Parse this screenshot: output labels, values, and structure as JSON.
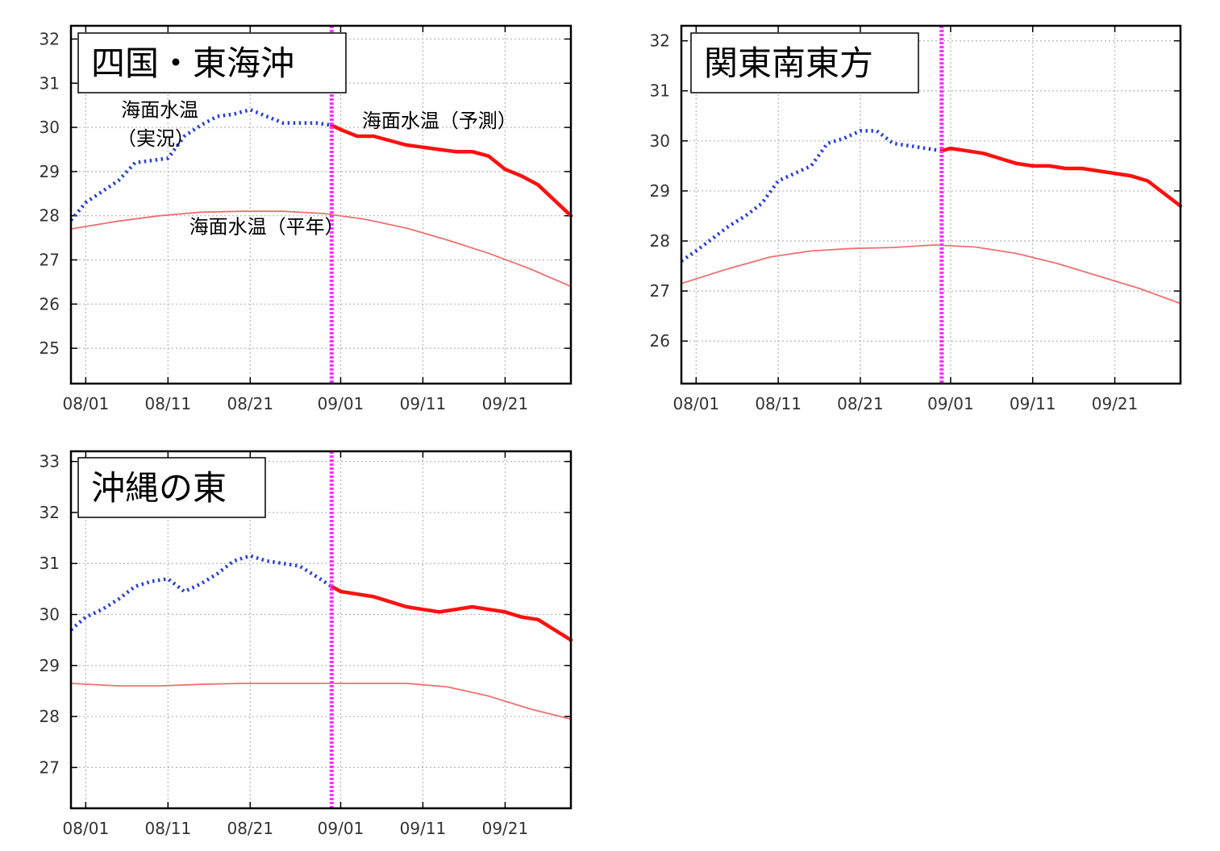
{
  "colors": {
    "observed": "#2a3fe0",
    "forecast": "#ff1010",
    "normal": "#f07070",
    "today_line": "#ff33ff",
    "grid": "#b5b5b5"
  },
  "chart_data": [
    {
      "type": "line",
      "title": "四国・東海沖",
      "x_ticks": [
        "08/01",
        "08/11",
        "08/21",
        "09/01",
        "09/11",
        "09/21"
      ],
      "x_tick_days": [
        1,
        11,
        21,
        32,
        42,
        52
      ],
      "x_range": [
        -0.8,
        60
      ],
      "today_day": 30.9,
      "ylim": [
        24.2,
        32.3
      ],
      "y_ticks": [
        25,
        26,
        27,
        28,
        29,
        30,
        31,
        32
      ],
      "annotations": [
        {
          "text": "海面水温",
          "day": 10,
          "y": 30.25
        },
        {
          "text": "（実況）",
          "day": 9.5,
          "y": 29.6
        },
        {
          "text": "海面水温（予測）",
          "day": 44,
          "y": 30.0
        },
        {
          "text": "海面水温（平年）",
          "day": 23,
          "y": 27.6
        }
      ],
      "series": [
        {
          "role": "observed",
          "x": [
            -0.8,
            1,
            3,
            5,
            7,
            9,
            11,
            13,
            15,
            17,
            19,
            21,
            23,
            25,
            27,
            29,
            30.9
          ],
          "y": [
            27.9,
            28.3,
            28.55,
            28.8,
            29.2,
            29.25,
            29.3,
            29.8,
            30.05,
            30.25,
            30.3,
            30.4,
            30.25,
            30.1,
            30.1,
            30.1,
            30.05
          ]
        },
        {
          "role": "forecast",
          "x": [
            30.9,
            32,
            34,
            36,
            38,
            40,
            42,
            44,
            46,
            48,
            50,
            52,
            54,
            56,
            58,
            60
          ],
          "y": [
            30.05,
            29.95,
            29.8,
            29.8,
            29.7,
            29.6,
            29.55,
            29.5,
            29.45,
            29.45,
            29.35,
            29.05,
            28.9,
            28.7,
            28.35,
            28.0
          ]
        },
        {
          "role": "normal",
          "x": [
            -0.8,
            5,
            10,
            15,
            20,
            25,
            30,
            35,
            40,
            45,
            50,
            55,
            60
          ],
          "y": [
            27.7,
            27.88,
            28.0,
            28.08,
            28.1,
            28.1,
            28.05,
            27.92,
            27.72,
            27.45,
            27.15,
            26.8,
            26.4
          ]
        }
      ]
    },
    {
      "type": "line",
      "title": "関東南東方",
      "x_ticks": [
        "08/01",
        "08/11",
        "08/21",
        "09/01",
        "09/11",
        "09/21"
      ],
      "x_tick_days": [
        1,
        11,
        21,
        32,
        42,
        52
      ],
      "x_range": [
        -0.8,
        60
      ],
      "today_day": 30.9,
      "ylim": [
        25.15,
        32.3
      ],
      "y_ticks": [
        26,
        27,
        28,
        29,
        30,
        31,
        32
      ],
      "annotations": [],
      "series": [
        {
          "role": "observed",
          "x": [
            -0.8,
            1,
            3,
            5,
            7,
            9,
            11,
            13,
            15,
            17,
            19,
            21,
            23,
            25,
            27,
            29,
            30.9
          ],
          "y": [
            27.6,
            27.8,
            28.05,
            28.3,
            28.5,
            28.75,
            29.2,
            29.35,
            29.5,
            29.95,
            30.05,
            30.2,
            30.2,
            29.95,
            29.9,
            29.85,
            29.8
          ]
        },
        {
          "role": "forecast",
          "x": [
            30.9,
            32,
            34,
            36,
            38,
            40,
            42,
            44,
            46,
            48,
            50,
            52,
            54,
            56,
            58,
            60
          ],
          "y": [
            29.8,
            29.85,
            29.8,
            29.75,
            29.65,
            29.55,
            29.5,
            29.5,
            29.45,
            29.45,
            29.4,
            29.35,
            29.3,
            29.2,
            28.95,
            28.7
          ]
        },
        {
          "role": "normal",
          "x": [
            -0.8,
            5,
            10,
            15,
            20,
            25,
            30,
            35,
            40,
            45,
            50,
            55,
            60
          ],
          "y": [
            27.15,
            27.45,
            27.68,
            27.8,
            27.85,
            27.87,
            27.92,
            27.88,
            27.75,
            27.55,
            27.3,
            27.05,
            26.75
          ]
        }
      ]
    },
    {
      "type": "line",
      "title": "沖縄の東",
      "x_ticks": [
        "08/01",
        "08/11",
        "08/21",
        "09/01",
        "09/11",
        "09/21"
      ],
      "x_tick_days": [
        1,
        11,
        21,
        32,
        42,
        52
      ],
      "x_range": [
        -0.8,
        60
      ],
      "today_day": 30.9,
      "ylim": [
        26.2,
        33.2
      ],
      "y_ticks": [
        27,
        28,
        29,
        30,
        31,
        32,
        33
      ],
      "annotations": [],
      "series": [
        {
          "role": "observed",
          "x": [
            -0.8,
            1,
            3,
            5,
            7,
            9,
            11,
            13,
            15,
            17,
            19,
            21,
            23,
            25,
            27,
            29,
            30.9
          ],
          "y": [
            29.7,
            29.95,
            30.1,
            30.3,
            30.55,
            30.65,
            30.7,
            30.45,
            30.6,
            30.8,
            31.05,
            31.15,
            31.05,
            31.0,
            30.95,
            30.75,
            30.55
          ]
        },
        {
          "role": "forecast",
          "x": [
            30.9,
            32,
            34,
            36,
            38,
            40,
            42,
            44,
            46,
            48,
            50,
            52,
            54,
            56,
            58,
            60
          ],
          "y": [
            30.55,
            30.45,
            30.4,
            30.35,
            30.25,
            30.15,
            30.1,
            30.05,
            30.1,
            30.15,
            30.1,
            30.05,
            29.95,
            29.9,
            29.7,
            29.5
          ]
        },
        {
          "role": "normal",
          "x": [
            -0.8,
            5,
            10,
            15,
            20,
            25,
            30,
            35,
            40,
            45,
            50,
            55,
            60
          ],
          "y": [
            28.65,
            28.6,
            28.6,
            28.63,
            28.65,
            28.65,
            28.65,
            28.65,
            28.65,
            28.58,
            28.4,
            28.15,
            27.95
          ]
        }
      ]
    }
  ]
}
